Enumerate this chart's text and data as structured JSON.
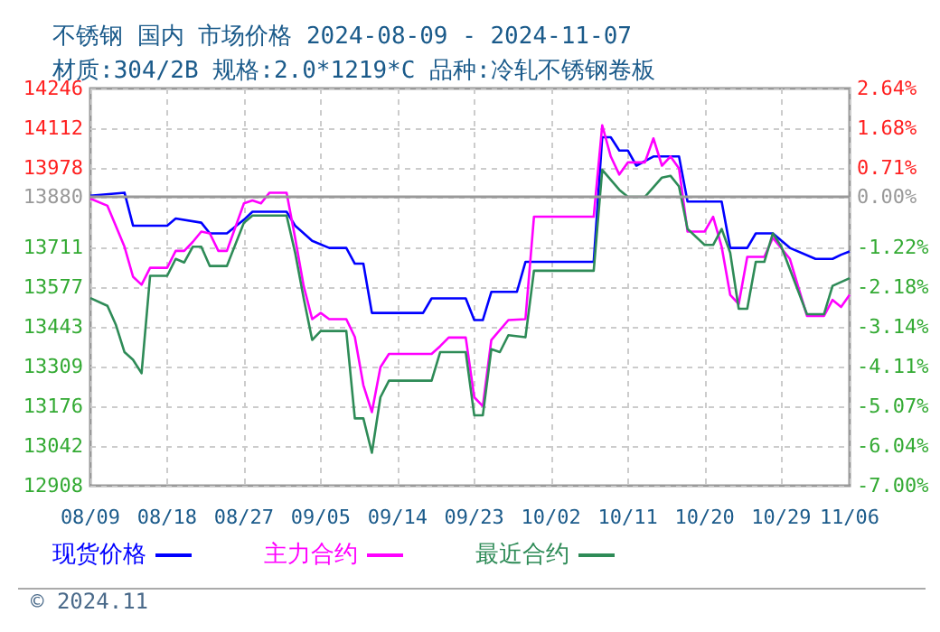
{
  "chart_data": {
    "type": "line",
    "title": "不锈钢 国内 市场价格 2024-08-09 - 2024-11-07",
    "subtitle": "材质:304/2B 规格:2.0*1219*C 品种:冷轧不锈钢卷板",
    "annotations": [
      "© 2024.11"
    ],
    "series": [
      {
        "name": "现货价格",
        "color": "#0000ff",
        "x": [
          "2024-08-09",
          "2024-08-13",
          "2024-08-14",
          "2024-08-18",
          "2024-08-19",
          "2024-08-22",
          "2024-08-23",
          "2024-08-25",
          "2024-08-27",
          "2024-08-28",
          "2024-09-01",
          "2024-09-02",
          "2024-09-04",
          "2024-09-06",
          "2024-09-08",
          "2024-09-09",
          "2024-09-10",
          "2024-09-11",
          "2024-09-17",
          "2024-09-18",
          "2024-09-22",
          "2024-09-23",
          "2024-09-24",
          "2024-09-25",
          "2024-09-28",
          "2024-09-29",
          "2024-10-07",
          "2024-10-08",
          "2024-10-09",
          "2024-10-10",
          "2024-10-11",
          "2024-10-12",
          "2024-10-14",
          "2024-10-17",
          "2024-10-18",
          "2024-10-22",
          "2024-10-23",
          "2024-10-25",
          "2024-10-26",
          "2024-10-28",
          "2024-10-30",
          "2024-11-02",
          "2024-11-04",
          "2024-11-05",
          "2024-11-06"
        ],
        "values": [
          13885,
          13895,
          13784,
          13784,
          13808,
          13794,
          13758,
          13758,
          13804,
          13831,
          13831,
          13784,
          13733,
          13709,
          13709,
          13656,
          13656,
          13490,
          13490,
          13539,
          13539,
          13466,
          13466,
          13561,
          13561,
          13662,
          13662,
          14082,
          14082,
          14037,
          14037,
          13986,
          14017,
          14017,
          13865,
          13865,
          13709,
          13709,
          13758,
          13758,
          13709,
          13672,
          13672,
          13686,
          13697
        ]
      },
      {
        "name": "主力合约",
        "color": "#ff00ff",
        "x": [
          "2024-08-09",
          "2024-08-11",
          "2024-08-13",
          "2024-08-14",
          "2024-08-15",
          "2024-08-16",
          "2024-08-18",
          "2024-08-19",
          "2024-08-20",
          "2024-08-21",
          "2024-08-22",
          "2024-08-23",
          "2024-08-24",
          "2024-08-25",
          "2024-08-27",
          "2024-08-28",
          "2024-08-29",
          "2024-08-30",
          "2024-09-01",
          "2024-09-02",
          "2024-09-03",
          "2024-09-04",
          "2024-09-05",
          "2024-09-06",
          "2024-09-08",
          "2024-09-09",
          "2024-09-10",
          "2024-09-11",
          "2024-09-12",
          "2024-09-13",
          "2024-09-18",
          "2024-09-19",
          "2024-09-20",
          "2024-09-22",
          "2024-09-23",
          "2024-09-24",
          "2024-09-25",
          "2024-09-27",
          "2024-09-29",
          "2024-09-30",
          "2024-10-07",
          "2024-10-08",
          "2024-10-09",
          "2024-10-10",
          "2024-10-11",
          "2024-10-13",
          "2024-10-14",
          "2024-10-15",
          "2024-10-16",
          "2024-10-17",
          "2024-10-18",
          "2024-10-20",
          "2024-10-21",
          "2024-10-22",
          "2024-10-23",
          "2024-10-24",
          "2024-10-25",
          "2024-10-27",
          "2024-10-28",
          "2024-10-30",
          "2024-11-01",
          "2024-11-03",
          "2024-11-04",
          "2024-11-05",
          "2024-11-06"
        ],
        "values": [
          13875,
          13851,
          13713,
          13612,
          13585,
          13642,
          13642,
          13699,
          13699,
          13729,
          13764,
          13758,
          13699,
          13699,
          13859,
          13869,
          13859,
          13895,
          13895,
          13743,
          13581,
          13469,
          13490,
          13469,
          13469,
          13409,
          13247,
          13156,
          13307,
          13352,
          13352,
          13378,
          13407,
          13407,
          13206,
          13176,
          13399,
          13466,
          13469,
          13814,
          13814,
          14122,
          14017,
          13956,
          13997,
          13997,
          14078,
          13986,
          14017,
          13977,
          13764,
          13764,
          13814,
          13713,
          13551,
          13520,
          13679,
          13679,
          13743,
          13672,
          13480,
          13480,
          13534,
          13510,
          13551
        ]
      },
      {
        "name": "最近合约",
        "color": "#2e8b57",
        "x": [
          "2024-08-09",
          "2024-08-11",
          "2024-08-12",
          "2024-08-13",
          "2024-08-14",
          "2024-08-15",
          "2024-08-16",
          "2024-08-18",
          "2024-08-19",
          "2024-08-20",
          "2024-08-21",
          "2024-08-22",
          "2024-08-23",
          "2024-08-25",
          "2024-08-27",
          "2024-08-28",
          "2024-09-01",
          "2024-09-02",
          "2024-09-03",
          "2024-09-04",
          "2024-09-05",
          "2024-09-08",
          "2024-09-09",
          "2024-09-10",
          "2024-09-11",
          "2024-09-12",
          "2024-09-13",
          "2024-09-18",
          "2024-09-19",
          "2024-09-22",
          "2024-09-23",
          "2024-09-24",
          "2024-09-25",
          "2024-09-26",
          "2024-09-27",
          "2024-09-29",
          "2024-09-30",
          "2024-10-07",
          "2024-10-08",
          "2024-10-10",
          "2024-10-11",
          "2024-10-13",
          "2024-10-15",
          "2024-10-16",
          "2024-10-17",
          "2024-10-18",
          "2024-10-20",
          "2024-10-21",
          "2024-10-22",
          "2024-10-23",
          "2024-10-24",
          "2024-10-25",
          "2024-10-26",
          "2024-10-27",
          "2024-10-28",
          "2024-10-29",
          "2024-11-01",
          "2024-11-03",
          "2024-11-04",
          "2024-11-06"
        ],
        "values": [
          13540,
          13514,
          13449,
          13358,
          13332,
          13287,
          13615,
          13615,
          13672,
          13660,
          13713,
          13713,
          13648,
          13648,
          13794,
          13818,
          13818,
          13693,
          13540,
          13399,
          13429,
          13429,
          13135,
          13135,
          13019,
          13206,
          13262,
          13262,
          13358,
          13358,
          13145,
          13145,
          13368,
          13358,
          13415,
          13408,
          13632,
          13632,
          13972,
          13905,
          13881,
          13881,
          13946,
          13952,
          13916,
          13773,
          13719,
          13719,
          13773,
          13693,
          13504,
          13504,
          13662,
          13662,
          13758,
          13713,
          13486,
          13486,
          13581,
          13607
        ]
      }
    ],
    "xlim": [
      "2024-08-09",
      "2024-11-06"
    ],
    "xticks": [
      {
        "value": "2024-08-09",
        "label": "08/09"
      },
      {
        "value": "2024-08-18",
        "label": "08/18"
      },
      {
        "value": "2024-08-27",
        "label": "08/27"
      },
      {
        "value": "2024-09-05",
        "label": "09/05"
      },
      {
        "value": "2024-09-14",
        "label": "09/14"
      },
      {
        "value": "2024-09-23",
        "label": "09/23"
      },
      {
        "value": "2024-10-02",
        "label": "10/02"
      },
      {
        "value": "2024-10-11",
        "label": "10/11"
      },
      {
        "value": "2024-10-20",
        "label": "10/20"
      },
      {
        "value": "2024-10-29",
        "label": "10/29"
      },
      {
        "value": "2024-11-06",
        "label": "11/06"
      }
    ],
    "ylim": [
      12908,
      14246
    ],
    "yticks": [
      12908,
      13042,
      13176,
      13309,
      13443,
      13577,
      13711,
      13880,
      13978,
      14112,
      14246
    ],
    "y2lim": [
      -7.0,
      2.64
    ],
    "y2ticks": [
      {
        "value": -7.0,
        "label": "-7.00%"
      },
      {
        "value": -6.04,
        "label": "-6.04%"
      },
      {
        "value": -5.07,
        "label": "-5.07%"
      },
      {
        "value": -4.11,
        "label": "-4.11%"
      },
      {
        "value": -3.14,
        "label": "-3.14%"
      },
      {
        "value": -2.18,
        "label": "-2.18%"
      },
      {
        "value": -1.22,
        "label": "-1.22%"
      },
      {
        "value": 0,
        "label": "0.00%"
      },
      {
        "value": 0.71,
        "label": "0.71%"
      },
      {
        "value": 1.68,
        "label": "1.68%"
      },
      {
        "value": 2.64,
        "label": "2.64%"
      }
    ],
    "ref_lines": [
      {
        "axis": "y",
        "value": 13880,
        "color": "#999999",
        "line_style": "solid"
      }
    ],
    "grid": true,
    "legend": "bottom",
    "marker": "none",
    "line_style": "solid"
  }
}
